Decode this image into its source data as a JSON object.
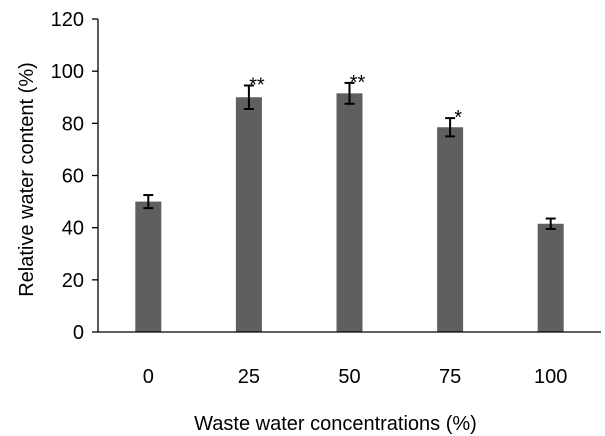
{
  "chart_data": {
    "type": "bar",
    "categories": [
      "0",
      "25",
      "50",
      "75",
      "100"
    ],
    "series": [
      {
        "values": [
          50,
          90,
          91.5,
          78.5,
          41.5
        ],
        "errors": [
          2.5,
          4.5,
          4,
          3.5,
          2
        ],
        "significance": [
          "",
          "**",
          "**",
          "*",
          ""
        ]
      }
    ],
    "xlabel": "Waste water concentrations (%)",
    "ylabel": "Relative water content (%)",
    "ylim": [
      0,
      120
    ],
    "yticks": [
      "0",
      "20",
      "40",
      "60",
      "80",
      "100",
      "120"
    ],
    "bar_color": "#5f5f5f",
    "grid": false
  }
}
